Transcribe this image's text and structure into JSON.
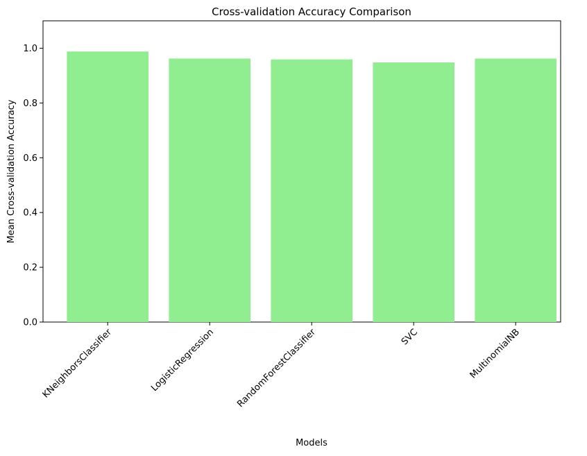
{
  "colors": {
    "bar": "#90ee90",
    "axis": "#000000",
    "background": "#ffffff"
  },
  "chart_data": {
    "type": "bar",
    "title": "Cross-validation Accuracy Comparison",
    "xlabel": "Models",
    "ylabel": "Mean Cross-validation Accuracy",
    "categories": [
      "KNeighborsClassifier",
      "LogisticRegression",
      "RandomForestClassifier",
      "SVC",
      "MultinomialNB"
    ],
    "values": [
      0.988,
      0.962,
      0.959,
      0.948,
      0.962
    ],
    "ylim": [
      0,
      1.1
    ],
    "yticks": [
      0.0,
      0.2,
      0.4,
      0.6,
      0.8,
      1.0
    ],
    "ytick_labels": [
      "0.0",
      "0.2",
      "0.4",
      "0.6",
      "0.8",
      "1.0"
    ],
    "xtick_rotation": "45°",
    "grid": false,
    "legend": "none"
  }
}
